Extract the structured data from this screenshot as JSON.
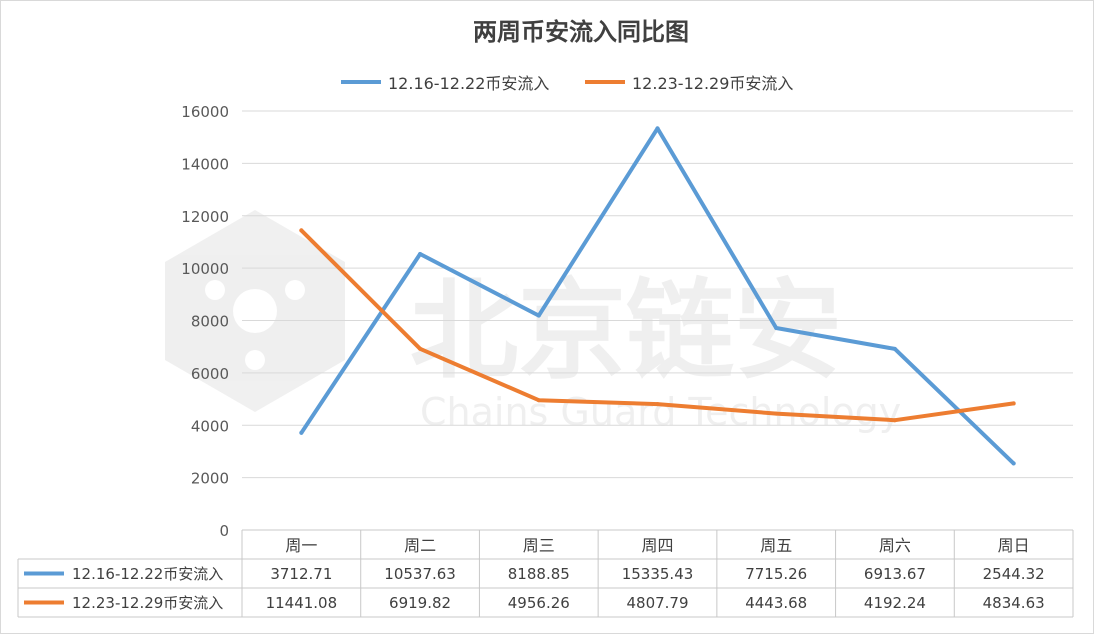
{
  "chart_data": {
    "type": "line",
    "title": "两周币安流入同比图",
    "categories": [
      "周一",
      "周二",
      "周三",
      "周四",
      "周五",
      "周六",
      "周日"
    ],
    "series": [
      {
        "name": "12.16-12.22币安流入",
        "color": "#5b9bd5",
        "values": [
          3712.71,
          10537.63,
          8188.85,
          15335.43,
          7715.26,
          6913.67,
          2544.32
        ]
      },
      {
        "name": "12.23-12.29币安流入",
        "color": "#ed7d31",
        "values": [
          11441.08,
          6919.82,
          4956.26,
          4807.79,
          4443.68,
          4192.24,
          4834.63
        ]
      }
    ],
    "ylim": [
      0,
      16000
    ],
    "yticks": [
      "0",
      "2000",
      "4000",
      "6000",
      "8000",
      "10000",
      "12000",
      "14000",
      "16000"
    ],
    "legend_position": "top",
    "data_table": {
      "rows": [
        [
          "3712.71",
          "10537.63",
          "8188.85",
          "15335.43",
          "7715.26",
          "6913.67",
          "2544.32"
        ],
        [
          "11441.08",
          "6919.82",
          "4956.26",
          "4807.79",
          "4443.68",
          "4192.24",
          "4834.63"
        ]
      ]
    },
    "watermark": {
      "cn": "北京链安",
      "en": "Chains Guard Technology"
    }
  }
}
